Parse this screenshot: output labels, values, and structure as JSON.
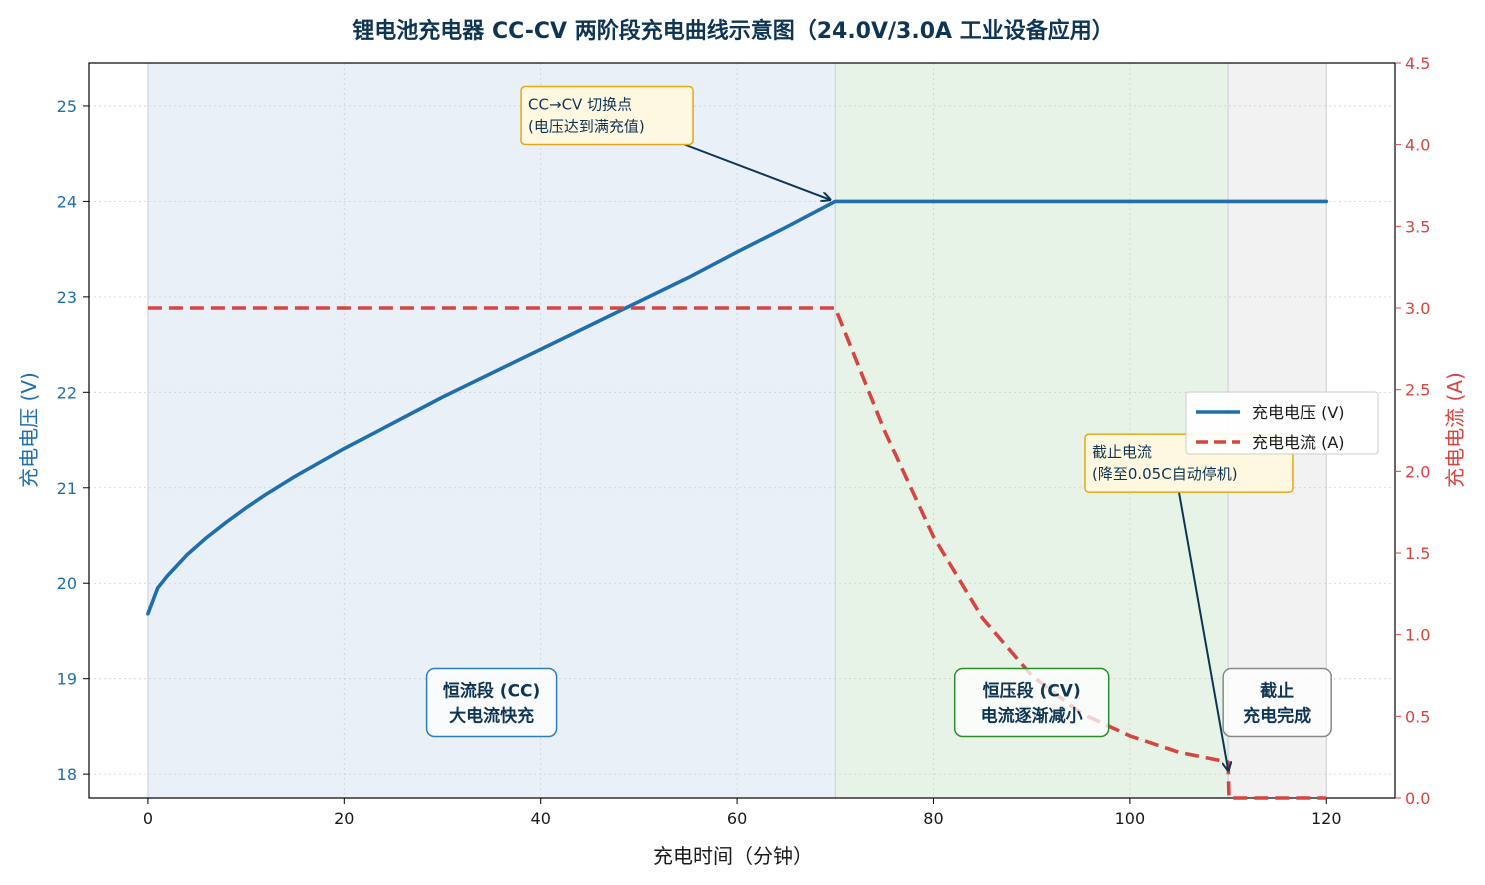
{
  "chart_data": {
    "type": "line",
    "title": "锂电池充电器 CC-CV 两阶段充电曲线示意图（24.0V/3.0A 工业设备应用）",
    "xlabel": "充电时间（分钟）",
    "ylabel_left": "充电电压 (V)",
    "ylabel_right": "充电电流 (A)",
    "xlim": [
      -6,
      127
    ],
    "ylim_left": [
      17.75,
      25.45
    ],
    "ylim_right": [
      0.0,
      4.5
    ],
    "x_ticks": [
      "0",
      "20",
      "40",
      "60",
      "80",
      "100",
      "120"
    ],
    "y_left_ticks": [
      "18",
      "19",
      "20",
      "21",
      "22",
      "23",
      "24",
      "25"
    ],
    "y_right_ticks": [
      "0.0",
      "0.5",
      "1.0",
      "1.5",
      "2.0",
      "2.5",
      "3.0",
      "3.5",
      "4.0",
      "4.5"
    ],
    "grid": true,
    "legend_position": "center-right",
    "colors": {
      "voltage": "#1f6fad",
      "current": "#d64541",
      "cc_region": "#eaf0f8",
      "cv_region": "#e8f3e7",
      "cutoff_region": "#f2f2f2",
      "annotation_border": "#e6a817",
      "annotation_fill": "#fff8e1"
    },
    "series": [
      {
        "name": "充电电压 (V)",
        "axis": "left",
        "style": "solid",
        "x": [
          0,
          1,
          2,
          4,
          6,
          8,
          10,
          12,
          15,
          20,
          25,
          30,
          35,
          40,
          45,
          50,
          55,
          60,
          65,
          70,
          80,
          90,
          100,
          110,
          120
        ],
        "y": [
          19.68,
          19.95,
          20.08,
          20.3,
          20.48,
          20.64,
          20.79,
          20.93,
          21.12,
          21.41,
          21.68,
          21.95,
          22.2,
          22.45,
          22.7,
          22.95,
          23.2,
          23.47,
          23.73,
          24.0,
          24.0,
          24.0,
          24.0,
          24.0,
          24.0
        ]
      },
      {
        "name": "充电电流 (A)",
        "axis": "right",
        "style": "dashed",
        "x": [
          0,
          10,
          20,
          30,
          40,
          50,
          60,
          70,
          72,
          75,
          80,
          85,
          90,
          95,
          100,
          105,
          110,
          110.1,
          115,
          120
        ],
        "y": [
          3.0,
          3.0,
          3.0,
          3.0,
          3.0,
          3.0,
          3.0,
          3.0,
          2.7,
          2.25,
          1.6,
          1.1,
          0.75,
          0.52,
          0.38,
          0.28,
          0.22,
          0.0,
          0.0,
          0.0
        ]
      }
    ],
    "regions": [
      {
        "name": "cc",
        "x0": 0,
        "x1": 70,
        "label_line1": "恒流段 (CC)",
        "label_line2": "大电流快充",
        "label_x": 35,
        "label_y": 18.75,
        "border": "#2e7cb8"
      },
      {
        "name": "cv",
        "x0": 70,
        "x1": 110,
        "label_line1": "恒压段 (CV)",
        "label_line2": "电流逐渐减小",
        "label_x": 90,
        "label_y": 18.75,
        "border": "#2e8b2e"
      },
      {
        "name": "cutoff",
        "x0": 110,
        "x1": 120,
        "label_line1": "截止",
        "label_line2": "充电完成",
        "label_x": 115,
        "label_y": 18.75,
        "border": "#888888"
      }
    ],
    "annotations": [
      {
        "text_line1": "CC→CV 切换点",
        "text_line2": "(电压达到满充值)",
        "point_x": 70,
        "point_y": 24.0,
        "point_axis": "left",
        "text_x": 38,
        "text_y": 24.9,
        "text_axis": "left"
      },
      {
        "text_line1": "截止电流",
        "text_line2": "(降至0.05C自动停机)",
        "point_x": 110,
        "point_y": 0.15,
        "point_axis": "right",
        "text_x": 105,
        "text_y": 2.05,
        "text_axis": "right"
      }
    ]
  }
}
